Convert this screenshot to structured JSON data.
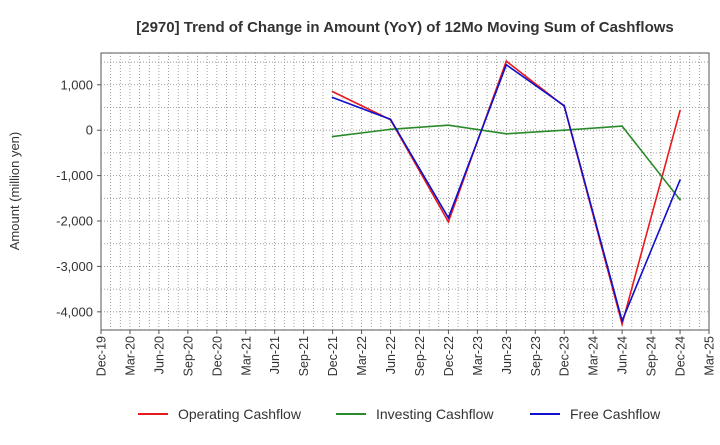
{
  "chart_data": {
    "type": "line",
    "title": "[2970]  Trend of Change in Amount (YoY) of 12Mo Moving Sum of Cashflows",
    "xlabel": "",
    "ylabel": "Amount (million yen)",
    "ylim": [
      -4400,
      1700
    ],
    "yticks": [
      1000,
      0,
      -1000,
      -2000,
      -3000,
      -4000
    ],
    "ytick_labels": [
      "1,000",
      "0",
      "-1,000",
      "-2,000",
      "-3,000",
      "-4,000"
    ],
    "categories": [
      "Dec-19",
      "Mar-20",
      "Jun-20",
      "Sep-20",
      "Dec-20",
      "Mar-21",
      "Jun-21",
      "Sep-21",
      "Dec-21",
      "Mar-22",
      "Jun-22",
      "Sep-22",
      "Dec-22",
      "Mar-23",
      "Jun-23",
      "Sep-23",
      "Dec-23",
      "Mar-24",
      "Jun-24",
      "Sep-24",
      "Dec-24",
      "Mar-25"
    ],
    "grid": true,
    "legend_position": "bottom",
    "series": [
      {
        "name": "Operating Cashflow",
        "color": "#e8191c",
        "points": [
          {
            "x": "Dec-21",
            "y": 850
          },
          {
            "x": "Jun-22",
            "y": 230
          },
          {
            "x": "Dec-22",
            "y": -2020
          },
          {
            "x": "Jun-23",
            "y": 1520
          },
          {
            "x": "Dec-23",
            "y": 530
          },
          {
            "x": "Jun-24",
            "y": -4270
          },
          {
            "x": "Dec-24",
            "y": 430
          }
        ]
      },
      {
        "name": "Investing Cashflow",
        "color": "#2a8a2a",
        "points": [
          {
            "x": "Dec-21",
            "y": -140
          },
          {
            "x": "Jun-22",
            "y": 20
          },
          {
            "x": "Dec-22",
            "y": 110
          },
          {
            "x": "Jun-23",
            "y": -80
          },
          {
            "x": "Dec-23",
            "y": 0
          },
          {
            "x": "Jun-24",
            "y": 90
          },
          {
            "x": "Dec-24",
            "y": -1530
          }
        ]
      },
      {
        "name": "Free Cashflow",
        "color": "#1010cc",
        "points": [
          {
            "x": "Dec-21",
            "y": 720
          },
          {
            "x": "Jun-22",
            "y": 240
          },
          {
            "x": "Dec-22",
            "y": -1930
          },
          {
            "x": "Jun-23",
            "y": 1440
          },
          {
            "x": "Dec-23",
            "y": 540
          },
          {
            "x": "Jun-24",
            "y": -4200
          },
          {
            "x": "Dec-24",
            "y": -1100
          }
        ]
      }
    ]
  }
}
